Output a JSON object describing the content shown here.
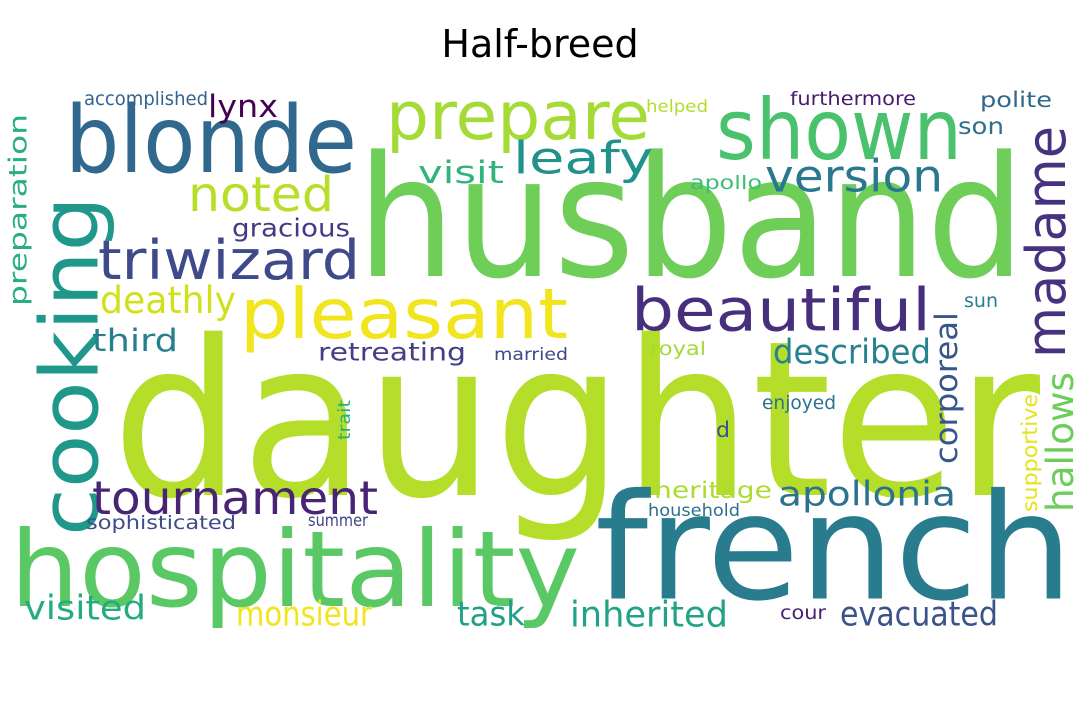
{
  "title": "Half-breed",
  "words": [
    {
      "text": "daughter",
      "color": "#b5de2b",
      "orientation": "horizontal"
    },
    {
      "text": "husband",
      "color": "#6ece58",
      "orientation": "horizontal"
    },
    {
      "text": "french",
      "color": "#287c8e",
      "orientation": "horizontal"
    },
    {
      "text": "hospitality",
      "color": "#5ac864",
      "orientation": "horizontal"
    },
    {
      "text": "blonde",
      "color": "#31688e",
      "orientation": "horizontal"
    },
    {
      "text": "cooking",
      "color": "#1f988b",
      "orientation": "vertical"
    },
    {
      "text": "shown",
      "color": "#4ac16d",
      "orientation": "horizontal"
    },
    {
      "text": "prepare",
      "color": "#a5db36",
      "orientation": "horizontal"
    },
    {
      "text": "pleasant",
      "color": "#f1e51d",
      "orientation": "horizontal"
    },
    {
      "text": "beautiful",
      "color": "#472f7d",
      "orientation": "horizontal"
    },
    {
      "text": "madame",
      "color": "#46327e",
      "orientation": "vertical"
    },
    {
      "text": "triwizard",
      "color": "#3e4a89",
      "orientation": "horizontal"
    },
    {
      "text": "tournament",
      "color": "#482475",
      "orientation": "horizontal"
    },
    {
      "text": "leafy",
      "color": "#21918c",
      "orientation": "horizontal"
    },
    {
      "text": "noted",
      "color": "#b8de29",
      "orientation": "horizontal"
    },
    {
      "text": "version",
      "color": "#2a788e",
      "orientation": "horizontal"
    },
    {
      "text": "apollonia",
      "color": "#2c728e",
      "orientation": "horizontal"
    },
    {
      "text": "evacuated",
      "color": "#3b528b",
      "orientation": "horizontal"
    },
    {
      "text": "inherited",
      "color": "#20a386",
      "orientation": "horizontal"
    },
    {
      "text": "monsieur",
      "color": "#f1e51d",
      "orientation": "horizontal"
    },
    {
      "text": "visited",
      "color": "#25ab82",
      "orientation": "horizontal"
    },
    {
      "text": "task",
      "color": "#1fa088",
      "orientation": "horizontal"
    },
    {
      "text": "deathly",
      "color": "#d0e11c",
      "orientation": "horizontal"
    },
    {
      "text": "described",
      "color": "#26828e",
      "orientation": "horizontal"
    },
    {
      "text": "hallows",
      "color": "#6ccd5a",
      "orientation": "vertical"
    },
    {
      "text": "corporeal",
      "color": "#39568c",
      "orientation": "vertical"
    },
    {
      "text": "preparation",
      "color": "#29af7f",
      "orientation": "vertical"
    },
    {
      "text": "third",
      "color": "#277f8e",
      "orientation": "horizontal"
    },
    {
      "text": "retreating",
      "color": "#433e85",
      "orientation": "horizontal"
    },
    {
      "text": "gracious",
      "color": "#443983",
      "orientation": "horizontal"
    },
    {
      "text": "visit",
      "color": "#2fb47c",
      "orientation": "horizontal"
    },
    {
      "text": "lynx",
      "color": "#440154",
      "orientation": "horizontal"
    },
    {
      "text": "heritage",
      "color": "#addc30",
      "orientation": "horizontal"
    },
    {
      "text": "son",
      "color": "#2d708e",
      "orientation": "horizontal"
    },
    {
      "text": "polite",
      "color": "#31688e",
      "orientation": "horizontal"
    },
    {
      "text": "furthermore",
      "color": "#481b6d",
      "orientation": "horizontal"
    },
    {
      "text": "accomplished",
      "color": "#33638d",
      "orientation": "horizontal"
    },
    {
      "text": "sophisticated",
      "color": "#3e4c8a",
      "orientation": "horizontal"
    },
    {
      "text": "supportive",
      "color": "#e5e419",
      "orientation": "vertical"
    },
    {
      "text": "apollo",
      "color": "#3dbc74",
      "orientation": "horizontal"
    },
    {
      "text": "royal",
      "color": "#a2da37",
      "orientation": "horizontal"
    },
    {
      "text": "married",
      "color": "#3f4788",
      "orientation": "horizontal"
    },
    {
      "text": "enjoyed",
      "color": "#2c738e",
      "orientation": "horizontal"
    },
    {
      "text": "household",
      "color": "#2e6f8e",
      "orientation": "horizontal"
    },
    {
      "text": "summer",
      "color": "#414487",
      "orientation": "horizontal"
    },
    {
      "text": "sun",
      "color": "#287d8e",
      "orientation": "horizontal"
    },
    {
      "text": "cour",
      "color": "#482173",
      "orientation": "horizontal"
    },
    {
      "text": "helped",
      "color": "#b2dd2d",
      "orientation": "horizontal"
    },
    {
      "text": "trait",
      "color": "#29af7f",
      "orientation": "vertical"
    },
    {
      "text": "d",
      "color": "#3b528b",
      "orientation": "horizontal"
    }
  ]
}
